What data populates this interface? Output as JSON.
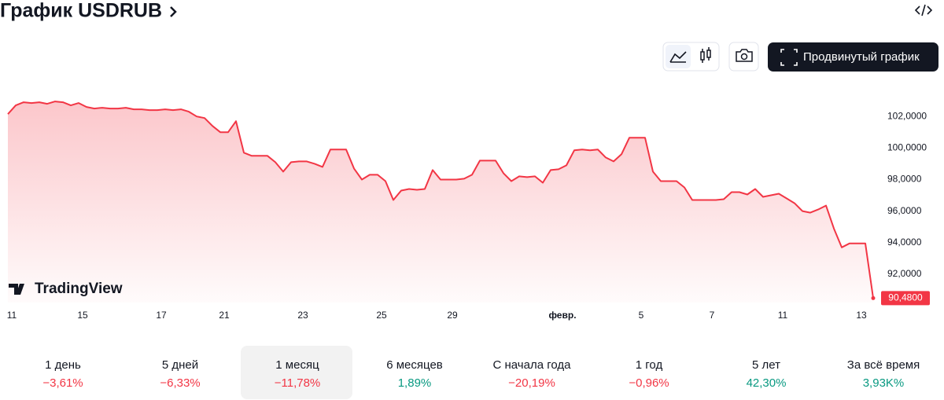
{
  "header": {
    "title": "График USDRUB"
  },
  "toolbar": {
    "advanced_button": "Продвинутый график"
  },
  "watermark": "TradingView",
  "chart_data": {
    "type": "area",
    "color": "#f23645",
    "categories": [
      "11",
      null,
      null,
      null,
      null,
      null,
      null,
      null,
      null,
      "15",
      null,
      null,
      null,
      null,
      null,
      null,
      null,
      null,
      null,
      "17",
      null,
      null,
      null,
      null,
      null,
      null,
      null,
      "21",
      null,
      null,
      null,
      null,
      null,
      null,
      null,
      null,
      null,
      "23",
      null,
      null,
      null,
      null,
      null,
      null,
      null,
      null,
      null,
      "25",
      null,
      null,
      null,
      null,
      null,
      null,
      null,
      null,
      "29",
      null,
      null,
      null,
      null,
      null,
      null,
      null,
      null,
      null,
      null,
      null,
      null,
      null,
      "февр.",
      null,
      null,
      null,
      null,
      null,
      null,
      null,
      null,
      null,
      "5",
      null,
      null,
      null,
      null,
      null,
      null,
      null,
      null,
      "7",
      null,
      null,
      null,
      null,
      null,
      null,
      null,
      null,
      "11",
      null,
      null,
      null,
      null,
      null,
      null,
      null,
      null,
      null,
      "13",
      null,
      null
    ],
    "values": [
      102.15,
      102.7,
      102.9,
      102.85,
      102.9,
      102.8,
      102.95,
      102.9,
      102.7,
      102.85,
      102.6,
      102.5,
      102.55,
      102.5,
      102.5,
      102.55,
      102.45,
      102.45,
      102.4,
      102.4,
      102.45,
      102.4,
      102.45,
      102.3,
      102.0,
      101.9,
      101.4,
      101.0,
      101.0,
      101.7,
      99.7,
      99.5,
      99.5,
      99.5,
      99.1,
      98.5,
      99.1,
      99.15,
      99.15,
      99.0,
      98.8,
      99.9,
      99.9,
      99.9,
      98.7,
      98.0,
      98.3,
      98.3,
      97.9,
      96.7,
      97.3,
      97.4,
      97.35,
      97.4,
      98.6,
      98.0,
      98.0,
      98.0,
      98.05,
      98.3,
      99.2,
      99.2,
      99.2,
      98.4,
      97.9,
      98.2,
      98.15,
      98.2,
      97.8,
      98.6,
      98.65,
      98.9,
      99.85,
      99.9,
      99.85,
      99.9,
      99.4,
      99.15,
      99.6,
      100.65,
      100.65,
      100.65,
      98.5,
      97.9,
      97.9,
      97.9,
      97.5,
      96.7,
      96.7,
      96.7,
      96.7,
      96.75,
      97.2,
      97.2,
      97.05,
      97.4,
      96.9,
      97.0,
      97.1,
      96.8,
      96.5,
      96.0,
      95.9,
      96.1,
      96.35,
      94.9,
      93.7,
      93.95,
      93.95,
      93.95,
      90.48
    ],
    "last_value_label": "90,4800",
    "ylim": [
      90.2,
      104.4
    ],
    "yticks": [
      {
        "value": 92,
        "label": "92,0000"
      },
      {
        "value": 94,
        "label": "94,0000"
      },
      {
        "value": 96,
        "label": "96,0000"
      },
      {
        "value": 98,
        "label": "98,0000"
      },
      {
        "value": 100,
        "label": "100,0000"
      },
      {
        "value": 102,
        "label": "102,0000"
      }
    ],
    "grid": false
  },
  "periods": {
    "selected": 2,
    "items": [
      {
        "label": "1 день",
        "change": "−3,61%",
        "color": "#f23645"
      },
      {
        "label": "5 дней",
        "change": "−6,33%",
        "color": "#f23645"
      },
      {
        "label": "1 месяц",
        "change": "−11,78%",
        "color": "#f23645"
      },
      {
        "label": "6 месяцев",
        "change": "1,89%",
        "color": "#089981"
      },
      {
        "label": "С начала года",
        "change": "−20,19%",
        "color": "#f23645"
      },
      {
        "label": "1 год",
        "change": "−0,96%",
        "color": "#f23645"
      },
      {
        "label": "5 лет",
        "change": "42,30%",
        "color": "#089981"
      },
      {
        "label": "За всё время",
        "change": "3,93K%",
        "color": "#089981"
      }
    ]
  }
}
